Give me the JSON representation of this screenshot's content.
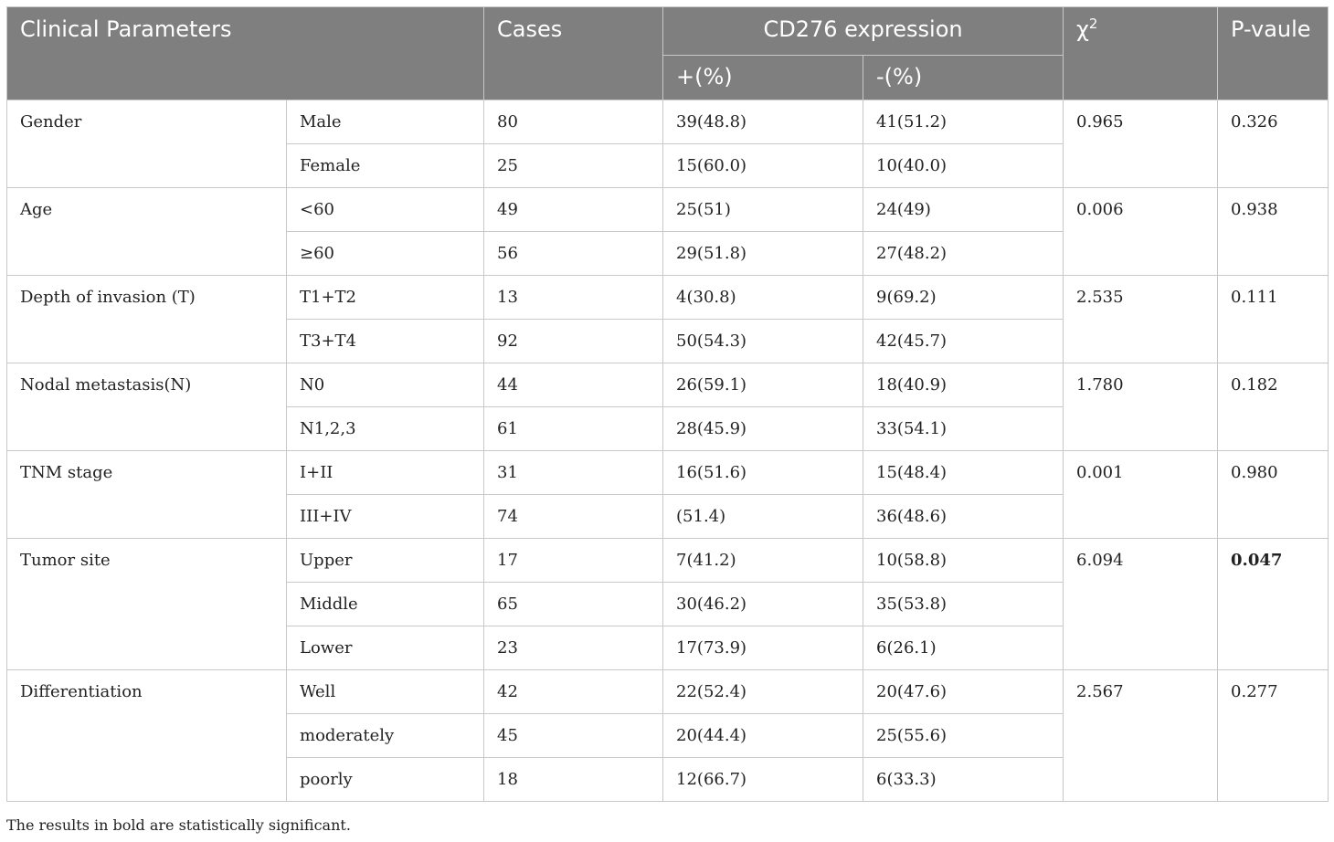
{
  "table": {
    "headers": {
      "clinical_parameters": "Clinical Parameters",
      "cases": "Cases",
      "cd276_expression": "CD276 expression",
      "chi_symbol": "χ",
      "chi_sup": "2",
      "p_value": "P-vaule",
      "positive": "+(%)",
      "negative": "-(%)"
    },
    "groups": [
      {
        "parameter": "Gender",
        "chi2": "0.965",
        "p": "0.326",
        "rows": [
          {
            "sub": "Male",
            "cases": "80",
            "pos": "39(48.8)",
            "neg": "41(51.2)"
          },
          {
            "sub": "Female",
            "cases": "25",
            "pos": "15(60.0)",
            "neg": "10(40.0)"
          }
        ]
      },
      {
        "parameter": "Age",
        "chi2": "0.006",
        "p": "0.938",
        "rows": [
          {
            "sub": "<60",
            "cases": "49",
            "pos": "25(51)",
            "neg": "24(49)"
          },
          {
            "sub": "≥60",
            "cases": "56",
            "pos": "29(51.8)",
            "neg": "27(48.2)"
          }
        ]
      },
      {
        "parameter": "Depth of invasion (T)",
        "chi2": "2.535",
        "p": "0.111",
        "rows": [
          {
            "sub": "T1+T2",
            "cases": "13",
            "pos": "4(30.8)",
            "neg": "9(69.2)"
          },
          {
            "sub": "T3+T4",
            "cases": "92",
            "pos": "50(54.3)",
            "neg": "42(45.7)"
          }
        ]
      },
      {
        "parameter": "Nodal metastasis(N)",
        "chi2": "1.780",
        "p": "0.182",
        "rows": [
          {
            "sub": "N0",
            "cases": "44",
            "pos": "26(59.1)",
            "neg": "18(40.9)"
          },
          {
            "sub": "N1,2,3",
            "cases": "61",
            "pos": "28(45.9)",
            "neg": "33(54.1)"
          }
        ]
      },
      {
        "parameter": "TNM stage",
        "chi2": "0.001",
        "p": "0.980",
        "rows": [
          {
            "sub": "I+II",
            "cases": "31",
            "pos": "16(51.6)",
            "neg": "15(48.4)"
          },
          {
            "sub": "III+IV",
            "cases": "74",
            "pos": "(51.4)",
            "neg": "36(48.6)"
          }
        ]
      },
      {
        "parameter": "Tumor site",
        "chi2": "6.094",
        "p": "0.047",
        "p_bold": true,
        "rows": [
          {
            "sub": "Upper",
            "cases": "17",
            "pos": "7(41.2)",
            "neg": "10(58.8)"
          },
          {
            "sub": "Middle",
            "cases": "65",
            "pos": "30(46.2)",
            "neg": "35(53.8)"
          },
          {
            "sub": "Lower",
            "cases": "23",
            "pos": "17(73.9)",
            "neg": "6(26.1)"
          }
        ]
      },
      {
        "parameter": "Differentiation",
        "chi2": "2.567",
        "p": "0.277",
        "rows": [
          {
            "sub": "Well",
            "cases": "42",
            "pos": "22(52.4)",
            "neg": "20(47.6)"
          },
          {
            "sub": "moderately",
            "cases": "45",
            "pos": "20(44.4)",
            "neg": "25(55.6)"
          },
          {
            "sub": "poorly",
            "cases": "18",
            "pos": "12(66.7)",
            "neg": "6(33.3)"
          }
        ]
      }
    ]
  },
  "footnote": "The results in bold are statistically significant.",
  "colors": {
    "header_bg": "#7f7f7f",
    "header_text": "#ffffff",
    "border": "#c8c8c8"
  }
}
